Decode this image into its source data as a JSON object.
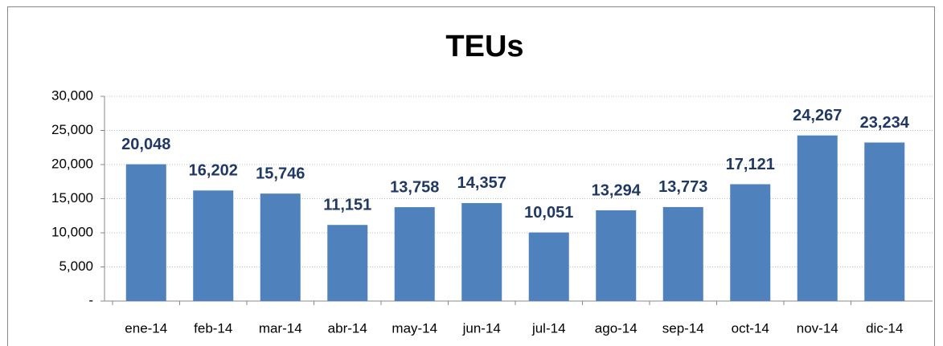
{
  "chart_data": {
    "type": "bar",
    "title": "TEUs",
    "categories": [
      "ene-14",
      "feb-14",
      "mar-14",
      "abr-14",
      "may-14",
      "jun-14",
      "jul-14",
      "ago-14",
      "sep-14",
      "oct-14",
      "nov-14",
      "dic-14"
    ],
    "values": [
      20048,
      16202,
      15746,
      11151,
      13758,
      14357,
      10051,
      13294,
      13773,
      17121,
      24267,
      23234
    ],
    "value_labels": [
      "20,048",
      "16,202",
      "15,746",
      "11,151",
      "13,758",
      "14,357",
      "10,051",
      "13,294",
      "13,773",
      "17,121",
      "24,267",
      "23,234"
    ],
    "color": "#4f81bd",
    "ylim": [
      0,
      30000
    ],
    "yticks": [
      {
        "value": 0,
        "label": "-"
      },
      {
        "value": 5000,
        "label": "5,000"
      },
      {
        "value": 10000,
        "label": "10,000"
      },
      {
        "value": 15000,
        "label": "15,000"
      },
      {
        "value": 20000,
        "label": "20,000"
      },
      {
        "value": 25000,
        "label": "25,000"
      },
      {
        "value": 30000,
        "label": "30,000"
      }
    ],
    "grid": true
  }
}
